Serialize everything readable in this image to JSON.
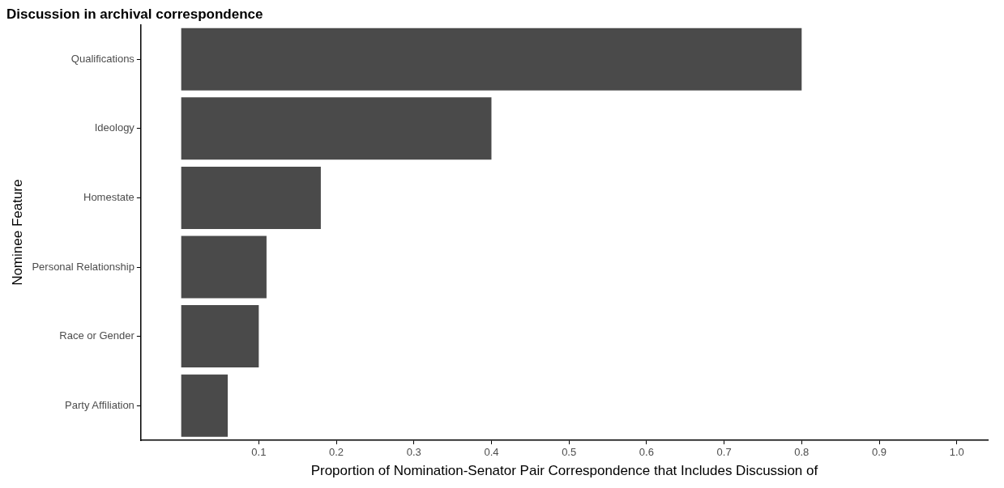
{
  "chart_data": {
    "type": "bar",
    "orientation": "horizontal",
    "title": "Discussion in archival correspondence",
    "xlabel": "Proportion of Nomination-Senator Pair Correspondence that Includes Discussion of",
    "ylabel": "Nominee Feature",
    "categories": [
      "Qualifications",
      "Ideology",
      "Homestate",
      "Personal Relationship",
      "Race or Gender",
      "Party Affiliation"
    ],
    "values": [
      0.8,
      0.4,
      0.18,
      0.11,
      0.1,
      0.06
    ],
    "color": "#4a4a4a",
    "xlim": [
      -0.052,
      1.04
    ],
    "xticks": [
      0.1,
      0.2,
      0.3,
      0.4,
      0.5,
      0.6,
      0.7,
      0.8,
      0.9,
      {
        "value": 1,
        "label": "1.0"
      }
    ],
    "grid": false,
    "legend": false
  }
}
